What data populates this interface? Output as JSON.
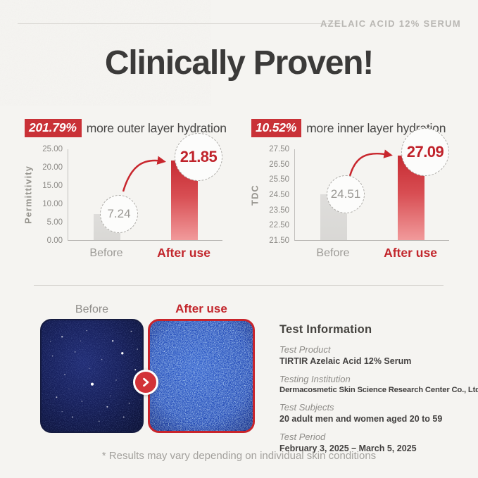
{
  "brand": "AZELAIC ACID 12% SERUM",
  "title": "Clinically Proven!",
  "charts": [
    {
      "badge": "201.79%",
      "caption": "more outer layer hydration",
      "ylabel": "Permittivity",
      "yticks": [
        "25.00",
        "20.00",
        "15.00",
        "10.00",
        "5.00",
        "0.00"
      ],
      "xlabels": {
        "before": "Before",
        "after": "After use"
      }
    },
    {
      "badge": "10.52%",
      "caption": "more inner layer hydration",
      "ylabel": "TDC",
      "yticks": [
        "27.50",
        "26.50",
        "25.50",
        "24.50",
        "23.50",
        "22.50",
        "21.50"
      ],
      "xlabels": {
        "before": "Before",
        "after": "After use"
      }
    }
  ],
  "chart_data": [
    {
      "type": "bar",
      "title": "201.79% more outer layer hydration",
      "categories": [
        "Before",
        "After use"
      ],
      "values": [
        7.24,
        21.85
      ],
      "xlabel": "",
      "ylabel": "Permittivity",
      "ylim": [
        0,
        25
      ],
      "ytick_step": 5,
      "grid": false,
      "legend": "none",
      "bar_colors": [
        "#dcdbd8",
        "#c62b32"
      ]
    },
    {
      "type": "bar",
      "title": "10.52% more inner layer hydration",
      "categories": [
        "Before",
        "After use"
      ],
      "values": [
        24.51,
        27.09
      ],
      "xlabel": "",
      "ylabel": "TDC",
      "ylim": [
        21.5,
        27.5
      ],
      "ytick_step": 1,
      "grid": false,
      "legend": "none",
      "bar_colors": [
        "#dcdbd8",
        "#c62b32"
      ]
    }
  ],
  "comparison": {
    "before_label": "Before",
    "after_label": "After use",
    "arrow_icon": "chevron-right"
  },
  "test_info": {
    "heading": "Test Information",
    "items": [
      {
        "label": "Test Product",
        "value": "TIRTIR Azelaic Acid 12% Serum"
      },
      {
        "label": "Testing Institution",
        "value": "Dermacosmetic Skin Science Research Center Co., Ltd."
      },
      {
        "label": "Test Subjects",
        "value": "20 adult men and women aged 20 to 59"
      },
      {
        "label": "Test Period",
        "value": "February 3, 2025 – March 5, 2025"
      }
    ]
  },
  "footer": "* Results may vary depending on individual skin conditions",
  "colors": {
    "accent_red": "#c93137",
    "label_red": "#c2262c",
    "bar_gray": "#dcdbd8",
    "text_dark": "#3b3a39",
    "text_gray": "#9b9995",
    "brand_gray": "#b9b7b3",
    "paper": "#f5f4f1"
  }
}
